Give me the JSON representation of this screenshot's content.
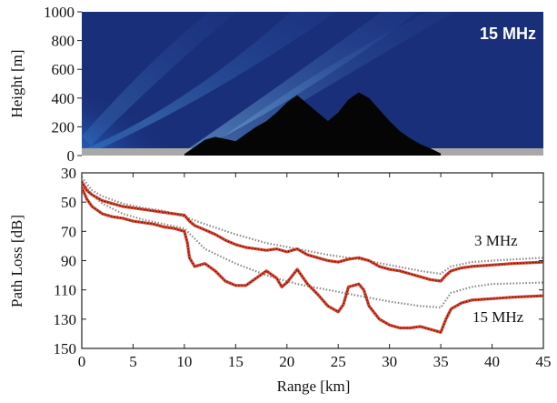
{
  "chart_data": [
    {
      "type": "heatmap",
      "ylabel": "Height [m]",
      "yticks": [
        "0",
        "200",
        "400",
        "600",
        "800",
        "1000"
      ],
      "ylim": [
        0,
        1000
      ],
      "xlim": [
        0,
        45
      ],
      "annotation": "15 MHz",
      "colors": {
        "background": "#1a2f7a",
        "ground": "#050505",
        "sea": "#a8a8a8",
        "hot": "#e83015"
      },
      "terrain": {
        "x": [
          10,
          11,
          12,
          13,
          14,
          15,
          16,
          17,
          18,
          19,
          20,
          21,
          22,
          23,
          24,
          25,
          26,
          27,
          28,
          29,
          30,
          31,
          32,
          33,
          34,
          35
        ],
        "height": [
          10,
          60,
          110,
          130,
          115,
          100,
          150,
          200,
          240,
          300,
          370,
          420,
          360,
          300,
          240,
          300,
          390,
          440,
          400,
          320,
          240,
          170,
          120,
          80,
          50,
          15
        ]
      }
    },
    {
      "type": "line",
      "xlabel": "Range [km]",
      "ylabel": "Path Loss [dB]",
      "xlim": [
        0,
        45
      ],
      "ylim": [
        150,
        30
      ],
      "xticks": [
        "0",
        "5",
        "10",
        "15",
        "20",
        "25",
        "30",
        "35",
        "40",
        "45"
      ],
      "yticks": [
        "30",
        "50",
        "70",
        "90",
        "110",
        "130",
        "150"
      ],
      "grid": false,
      "colors": {
        "simulated": "#d9402b",
        "smooth_reference": "#8a8a8a"
      },
      "series": [
        {
          "name": "3 MHz",
          "x": [
            0,
            0.5,
            1,
            2,
            3,
            4,
            5,
            6,
            7,
            8,
            9,
            10,
            10.5,
            11,
            12,
            13,
            14,
            15,
            16,
            17,
            18,
            19,
            20,
            21,
            22,
            23,
            24,
            25,
            26,
            27,
            28,
            29,
            30,
            31,
            32,
            33,
            34,
            35,
            35.5,
            36,
            37,
            38,
            40,
            42,
            45
          ],
          "values": [
            36,
            42,
            45,
            49,
            51,
            53,
            54,
            55,
            56,
            57,
            58,
            59,
            63,
            66,
            69,
            72,
            76,
            79,
            81,
            82,
            83,
            82,
            84,
            82,
            86,
            88,
            90,
            91,
            89,
            88,
            90,
            94,
            96,
            97,
            99,
            101,
            103,
            104,
            100,
            97,
            95,
            94,
            93,
            92,
            91
          ]
        },
        {
          "name": "15 MHz",
          "x": [
            0,
            0.5,
            1,
            2,
            3,
            4,
            5,
            6,
            7,
            8,
            9,
            10,
            10.3,
            10.5,
            11,
            12,
            13,
            14,
            15,
            16,
            17,
            18,
            19,
            19.5,
            20,
            21,
            22,
            23,
            24,
            25,
            25.5,
            26,
            27,
            27.5,
            28,
            29,
            30,
            31,
            32,
            33,
            34,
            35,
            35.5,
            36,
            37,
            38,
            40,
            42,
            45
          ],
          "values": [
            40,
            48,
            53,
            58,
            60,
            61,
            63,
            64,
            65,
            67,
            68,
            70,
            78,
            88,
            94,
            92,
            97,
            104,
            107,
            107,
            102,
            97,
            102,
            108,
            105,
            96,
            106,
            113,
            121,
            125,
            120,
            108,
            106,
            110,
            121,
            130,
            134,
            136,
            136,
            135,
            137,
            139,
            130,
            123,
            119,
            117,
            116,
            115,
            114
          ]
        },
        {
          "name": "",
          "style": "dotted",
          "x": [
            0,
            1,
            2,
            4,
            6,
            8,
            10,
            12,
            15,
            18,
            21,
            24,
            27,
            30,
            33,
            35,
            36,
            38,
            40,
            45
          ],
          "values": [
            33,
            42,
            46,
            51,
            54,
            56,
            60,
            65,
            72,
            78,
            82,
            86,
            89,
            93,
            97,
            99,
            94,
            91,
            90,
            88
          ]
        },
        {
          "name": "",
          "style": "dotted",
          "x": [
            0,
            1,
            2,
            4,
            6,
            8,
            10,
            12,
            15,
            18,
            21,
            24,
            27,
            30,
            33,
            35,
            36,
            38,
            40,
            45
          ],
          "values": [
            36,
            45,
            51,
            58,
            62,
            65,
            68,
            82,
            92,
            100,
            106,
            110,
            114,
            118,
            121,
            122,
            112,
            108,
            106,
            105
          ]
        }
      ],
      "annotations": [
        "3 MHz",
        "15 MHz"
      ]
    }
  ]
}
